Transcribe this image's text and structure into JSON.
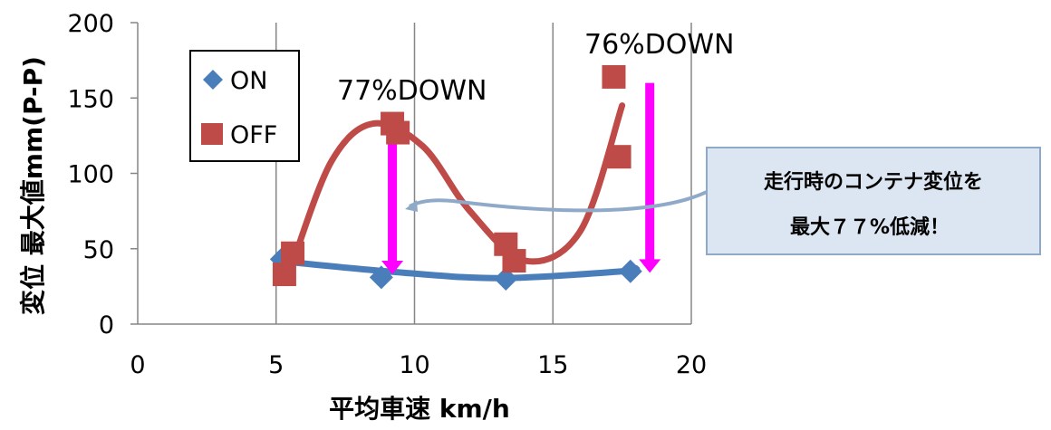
{
  "chart_data": {
    "type": "scatter",
    "xlabel": "平均車速 km/h",
    "ylabel": "変位 最大値mm(P-P)",
    "xlim": [
      0,
      20
    ],
    "ylim": [
      0,
      200
    ],
    "x_ticks": [
      "0",
      "5",
      "10",
      "15",
      "20"
    ],
    "y_ticks": [
      "0",
      "50",
      "100",
      "150",
      "200"
    ],
    "grid": "vertical",
    "legend_position": "top-left",
    "series": [
      {
        "name": "ON",
        "marker": "diamond",
        "color": "#4a7ebb",
        "x": [
          5.2,
          8.8,
          13.3,
          17.8
        ],
        "y": [
          43,
          31,
          30,
          35
        ],
        "trend": [
          [
            5.0,
            42
          ],
          [
            9,
            35
          ],
          [
            13,
            30.5
          ],
          [
            17.5,
            35
          ],
          [
            18,
            37
          ]
        ]
      },
      {
        "name": "OFF",
        "marker": "square",
        "color": "#be4b48",
        "x": [
          5.3,
          5.6,
          9.2,
          9.4,
          13.3,
          13.6,
          17.2,
          17.4
        ],
        "y": [
          33,
          47,
          133,
          127,
          53,
          42,
          164,
          111
        ],
        "trend": [
          [
            5.6,
            41
          ],
          [
            7,
            108
          ],
          [
            8.5,
            133
          ],
          [
            10.3,
            118
          ],
          [
            12,
            75
          ],
          [
            14,
            42
          ],
          [
            16,
            62
          ],
          [
            17.5,
            145
          ]
        ]
      }
    ],
    "annotations": [
      {
        "text": "77%DOWN",
        "arrow_x": 9.2,
        "from_y": 133,
        "to_y": 33
      },
      {
        "text": "76%DOWN",
        "arrow_x": 18.5,
        "from_y": 160,
        "to_y": 34
      }
    ],
    "callout_lines": [
      "走行時のコンテナ変位を",
      "最大７７%低減！"
    ],
    "colors": {
      "on": "#4a7ebb",
      "off": "#be4b48",
      "arrow": "#ff00ff",
      "callout_fill": "#dce6f2",
      "callout_border": "#8faac8"
    }
  }
}
